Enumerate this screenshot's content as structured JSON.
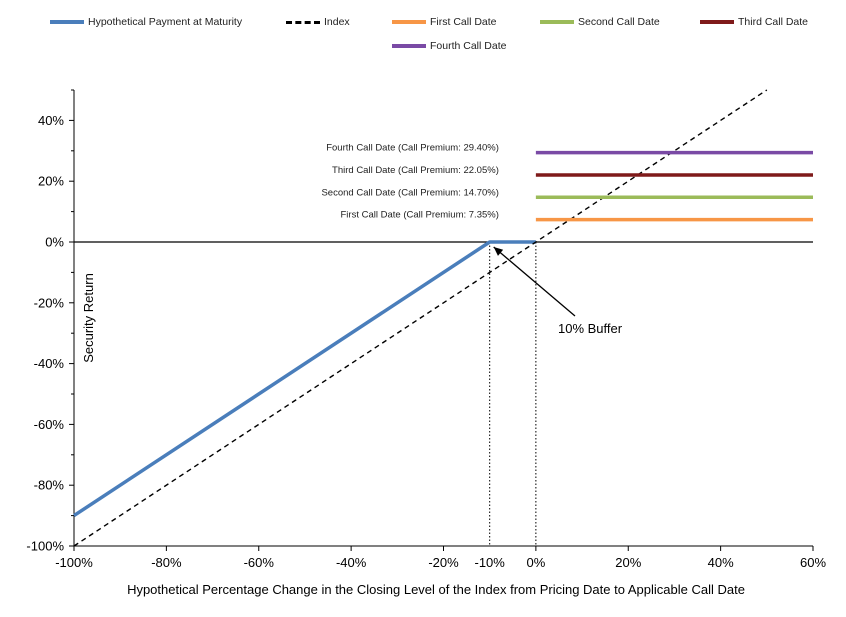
{
  "legend": [
    {
      "label": "Hypothetical Payment at Maturity",
      "color": "#4a7ebb",
      "style": "solid"
    },
    {
      "label": "Index",
      "color": "#000000",
      "style": "dashed"
    },
    {
      "label": "First Call Date",
      "color": "#f79646",
      "style": "solid"
    },
    {
      "label": "Second Call Date",
      "color": "#9bbb59",
      "style": "solid"
    },
    {
      "label": "Third Call Date",
      "color": "#7f1a1a",
      "style": "solid"
    },
    {
      "label": "Fourth Call Date",
      "color": "#7a4aa5",
      "style": "solid"
    }
  ],
  "chart_data": {
    "type": "line",
    "xlabel": "Hypothetical Percentage Change in the Closing Level of the Index from Pricing Date to Applicable Call Date",
    "ylabel": "Security Return",
    "xlim": [
      -100,
      60
    ],
    "ylim": [
      -100,
      50
    ],
    "x_ticks": [
      -100,
      -80,
      -60,
      -40,
      -20,
      -10,
      0,
      20,
      40,
      60
    ],
    "x_tick_labels": [
      "-100%",
      "-80%",
      "-60%",
      "-40%",
      "-20%",
      "-10%",
      "0%",
      "20%",
      "40%",
      "60%"
    ],
    "y_ticks": [
      -100,
      -80,
      -60,
      -40,
      -20,
      0,
      20,
      40
    ],
    "y_tick_labels": [
      "-100%",
      "-80%",
      "-60%",
      "-40%",
      "-20%",
      "0%",
      "20%",
      "40%"
    ],
    "series": [
      {
        "name": "Hypothetical Payment at Maturity",
        "color": "#4a7ebb",
        "x": [
          -100,
          -10,
          0
        ],
        "y": [
          -90,
          0,
          0
        ]
      },
      {
        "name": "Index",
        "color": "#000000",
        "dashed": true,
        "x": [
          -100,
          50
        ],
        "y": [
          -100,
          50
        ]
      },
      {
        "name": "First Call Date",
        "color": "#f79646",
        "x": [
          0,
          60
        ],
        "y": [
          7.35,
          7.35
        ]
      },
      {
        "name": "Second Call Date",
        "color": "#9bbb59",
        "x": [
          0,
          60
        ],
        "y": [
          14.7,
          14.7
        ]
      },
      {
        "name": "Third Call Date",
        "color": "#7f1a1a",
        "x": [
          0,
          60
        ],
        "y": [
          22.05,
          22.05
        ]
      },
      {
        "name": "Fourth Call Date",
        "color": "#7a4aa5",
        "x": [
          0,
          60
        ],
        "y": [
          29.4,
          29.4
        ]
      }
    ],
    "annotations": [
      {
        "text": "Fourth Call Date (Call Premium: 29.40%)",
        "y": 29.4
      },
      {
        "text": "Third Call Date (Call Premium: 22.05%)",
        "y": 22.05
      },
      {
        "text": "Second Call Date (Call Premium: 14.70%)",
        "y": 14.7
      },
      {
        "text": "First Call Date (Call Premium: 7.35%)",
        "y": 7.35
      }
    ],
    "buffer_label": "10% Buffer",
    "vertical_markers": [
      -10,
      0
    ]
  }
}
